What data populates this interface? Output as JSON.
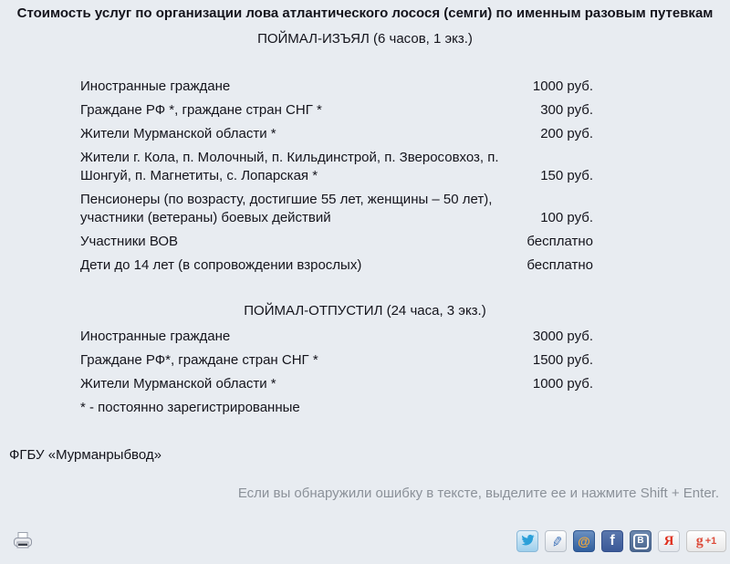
{
  "page": {
    "title": "Стоимость услуг по организации лова атлантического лосося (семги) по именным разовым путевкам"
  },
  "sections": [
    {
      "heading": "ПОЙМАЛ-ИЗЪЯЛ (6 часов, 1 экз.)",
      "rows": [
        {
          "label": "Иностранные граждане",
          "price": "1000 руб."
        },
        {
          "label": "Граждане РФ *, граждане стран СНГ *",
          "price": "300 руб."
        },
        {
          "label": "Жители Мурманской области *",
          "price": "200 руб."
        },
        {
          "label": "Жители г. Кола, п. Молочный, п. Кильдинстрой, п. Зверосовхоз, п. Шонгуй, п. Магнетиты, с. Лопарская *",
          "price": "150 руб."
        },
        {
          "label": "Пенсионеры (по возрасту, достигшие 55 лет, женщины – 50 лет), участники (ветераны) боевых действий",
          "price": "100 руб."
        },
        {
          "label": "Участники ВОВ",
          "price": "бесплатно"
        },
        {
          "label": "Дети до 14 лет (в сопровождении взрослых)",
          "price": "бесплатно"
        }
      ]
    },
    {
      "heading": "ПОЙМАЛ-ОТПУСТИЛ (24 часа, 3 экз.)",
      "rows": [
        {
          "label": "Иностранные граждане",
          "price": "3000 руб."
        },
        {
          "label": "Граждане РФ*, граждане стран СНГ *",
          "price": "1500 руб."
        },
        {
          "label": "Жители Мурманской области *",
          "price": "1000 руб."
        }
      ],
      "footnote": "* - постоянно зарегистрированные"
    }
  ],
  "footer": {
    "org": "ФГБУ «Мурманрыбвод»",
    "error_hint": "Если вы обнаружили ошибку в тексте, выделите ее и нажмите Shift + Enter.",
    "social_icons": [
      {
        "name": "twitter-icon",
        "glyph": ""
      },
      {
        "name": "livejournal-icon",
        "glyph": "✎"
      },
      {
        "name": "mailru-icon",
        "glyph": "@"
      },
      {
        "name": "facebook-icon",
        "glyph": "f"
      },
      {
        "name": "vk-icon",
        "glyph": "В"
      },
      {
        "name": "yandex-icon",
        "glyph": "Я"
      },
      {
        "name": "google-plus-one-icon",
        "glyph": "g",
        "badge": "+1"
      }
    ]
  },
  "colors": {
    "background": "#e8ecf1",
    "text": "#14141c",
    "hint_text": "#8b9199",
    "twitter_blue": "#2ba0d9",
    "mailru_orange": "#f2a93b",
    "facebook_blue": "#3b5998",
    "vk_blue": "#54759e",
    "yandex_red": "#e0301e",
    "google_red": "#dd4b39"
  }
}
